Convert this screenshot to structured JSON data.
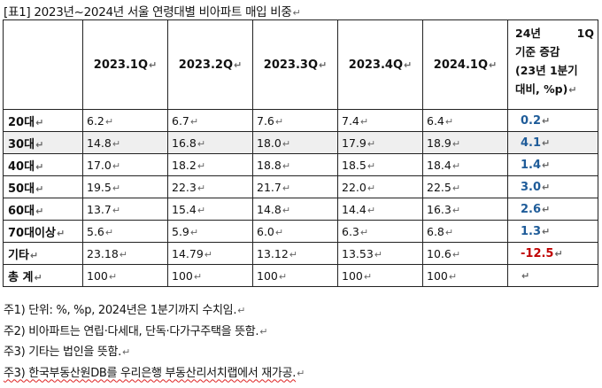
{
  "title": "[표1] 2023년~2024년 서울 연령대별 비아파트 매입 비중",
  "paragraph_mark": "↵",
  "cell_mark": "↵",
  "table": {
    "quarter_headers": [
      "2023.1Q",
      "2023.2Q",
      "2023.3Q",
      "2023.4Q",
      "2024.1Q"
    ],
    "last_header_lines": [
      "24년",
      "1Q",
      "기준 증감",
      "(23년 1분기",
      "대비, %p)"
    ],
    "rows": [
      {
        "label": "20대",
        "values": [
          "6.2",
          "6.7",
          "7.6",
          "7.4",
          "6.4"
        ],
        "change": "0.2",
        "sign": "pos"
      },
      {
        "label": "30대",
        "values": [
          "14.8",
          "16.8",
          "18.0",
          "17.9",
          "18.9"
        ],
        "change": "4.1",
        "sign": "pos"
      },
      {
        "label": "40대",
        "values": [
          "17.0",
          "18.2",
          "18.8",
          "18.5",
          "18.4"
        ],
        "change": "1.4",
        "sign": "pos"
      },
      {
        "label": "50대",
        "values": [
          "19.5",
          "22.3",
          "21.7",
          "22.0",
          "22.5"
        ],
        "change": "3.0",
        "sign": "pos"
      },
      {
        "label": "60대",
        "values": [
          "13.7",
          "15.4",
          "14.8",
          "14.4",
          "16.3"
        ],
        "change": "2.6",
        "sign": "pos"
      },
      {
        "label": "70대이상",
        "values": [
          "5.6",
          "5.9",
          "6.0",
          "6.3",
          "6.8"
        ],
        "change": "1.3",
        "sign": "pos"
      },
      {
        "label": "기타",
        "values": [
          "23.18",
          "14.79",
          "13.12",
          "13.53",
          "10.6"
        ],
        "change": "-12.5",
        "sign": "neg"
      },
      {
        "label": "총 계",
        "values": [
          "100",
          "100",
          "100",
          "100",
          "100"
        ],
        "change": "",
        "sign": "none"
      }
    ]
  },
  "notes": [
    "주1) 단위: %, %p, 2024년은 1분기까지 수치임.",
    "주2) 비아파트는 연립·다세대, 단독·다가구주택을 뜻함.",
    "주3) 기타는 법인을 뜻함.",
    "주3) 한국부동산원DB를 우리은행 부동산리서치랩에서 재가공."
  ],
  "colors": {
    "positive_change": "#1f5c99",
    "negative_change": "#c00000",
    "shaded_row": "#efefef"
  }
}
